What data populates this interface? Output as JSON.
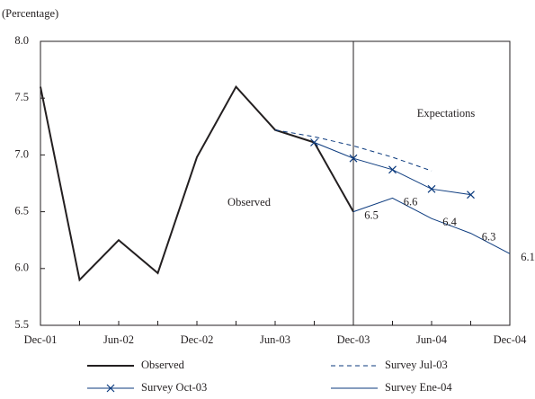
{
  "chart_data": {
    "type": "line",
    "y_axis_label": "(Percentage)",
    "categories": [
      "Dec-01",
      null,
      "Jun-02",
      null,
      "Dec-02",
      null,
      "Jun-03",
      null,
      "Dec-03",
      null,
      "Jun-04",
      null,
      "Dec-04"
    ],
    "ylim": [
      5.5,
      8.0
    ],
    "yticks": [
      {
        "value": 5.5,
        "label": "5.5"
      },
      {
        "value": 6.0,
        "label": "6.0"
      },
      {
        "value": 6.5,
        "label": "6.5"
      },
      {
        "value": 7.0,
        "label": "7.0"
      },
      {
        "value": 7.5,
        "label": "7.5"
      },
      {
        "value": 8.0,
        "label": "8.0"
      }
    ],
    "divider_at": "Dec-03",
    "annotations": [
      "Observed",
      "Expectations"
    ],
    "series": [
      {
        "name": "Observed",
        "color": "#231f20",
        "linewidth": 2,
        "line_style": "solid",
        "values": [
          7.6,
          5.9,
          6.25,
          5.96,
          6.98,
          7.6,
          7.22,
          7.11,
          6.5,
          null,
          null,
          null,
          null
        ]
      },
      {
        "name": "Survey  Jul-03",
        "color": "#0b3a7e",
        "linewidth": 1,
        "line_style": "dashed",
        "values": [
          null,
          null,
          null,
          null,
          null,
          null,
          7.22,
          7.16,
          7.08,
          6.98,
          6.86,
          null,
          null
        ]
      },
      {
        "name": "Survey  Oct-03",
        "color": "#0b3a7e",
        "linewidth": 1,
        "line_style": "solid",
        "marker": "x",
        "values": [
          null,
          null,
          null,
          null,
          null,
          null,
          null,
          7.11,
          6.97,
          6.87,
          6.7,
          6.65,
          null
        ]
      },
      {
        "name": "Survey  Ene-04",
        "color": "#0b3a7e",
        "linewidth": 1,
        "line_style": "solid",
        "values": [
          null,
          null,
          null,
          null,
          null,
          null,
          null,
          null,
          6.5,
          6.62,
          6.44,
          6.31,
          6.13
        ],
        "value_labels": [
          null,
          null,
          null,
          null,
          null,
          null,
          null,
          null,
          "6.5",
          "6.6",
          "6.4",
          "6.3",
          "6.1"
        ]
      }
    ]
  }
}
